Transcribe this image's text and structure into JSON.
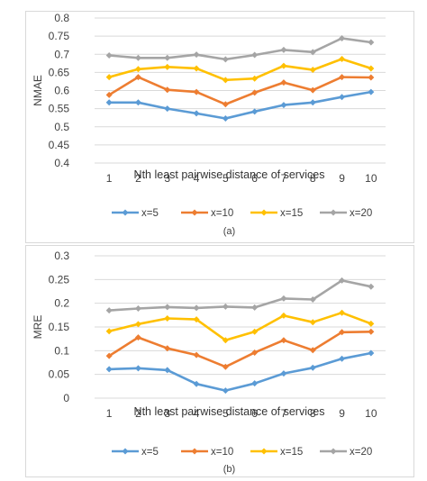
{
  "chart_data": [
    {
      "type": "line",
      "panel_label": "(a)",
      "ylabel": "NMAE",
      "xlabel": "Nth least pairwise distance of services",
      "x": [
        1,
        2,
        3,
        4,
        5,
        6,
        7,
        8,
        9,
        10
      ],
      "ylim": [
        0.4,
        0.8
      ],
      "yticks": [
        "0.4",
        "0.45",
        "0.5",
        "0.55",
        "0.6",
        "0.65",
        "0.7",
        "0.75",
        "0.8"
      ],
      "grid": true,
      "legend_position": "bottom",
      "series": [
        {
          "name": "x=5",
          "color": "#5b9bd5",
          "values": [
            0.567,
            0.567,
            0.55,
            0.537,
            0.523,
            0.542,
            0.56,
            0.567,
            0.582,
            0.596
          ]
        },
        {
          "name": "x=10",
          "color": "#ed7d31",
          "values": [
            0.588,
            0.637,
            0.602,
            0.596,
            0.562,
            0.594,
            0.622,
            0.601,
            0.637,
            0.636
          ]
        },
        {
          "name": "x=15",
          "color": "#ffc000",
          "values": [
            0.637,
            0.659,
            0.665,
            0.661,
            0.629,
            0.633,
            0.668,
            0.657,
            0.687,
            0.661
          ]
        },
        {
          "name": "x=20",
          "color": "#a5a5a5",
          "values": [
            0.697,
            0.69,
            0.69,
            0.699,
            0.686,
            0.698,
            0.712,
            0.706,
            0.744,
            0.733
          ]
        }
      ]
    },
    {
      "type": "line",
      "panel_label": "(b)",
      "ylabel": "MRE",
      "xlabel": "Nth least pairwise distance of services",
      "x": [
        1,
        2,
        3,
        4,
        5,
        6,
        7,
        8,
        9,
        10
      ],
      "ylim": [
        0,
        0.3
      ],
      "yticks": [
        "0",
        "0.05",
        "0.1",
        "0.15",
        "0.2",
        "0.25",
        "0.3"
      ],
      "grid": true,
      "legend_position": "bottom",
      "series": [
        {
          "name": "x=5",
          "color": "#5b9bd5",
          "values": [
            0.061,
            0.063,
            0.059,
            0.03,
            0.016,
            0.031,
            0.052,
            0.064,
            0.083,
            0.095
          ]
        },
        {
          "name": "x=10",
          "color": "#ed7d31",
          "values": [
            0.089,
            0.128,
            0.105,
            0.091,
            0.066,
            0.096,
            0.122,
            0.101,
            0.139,
            0.14
          ]
        },
        {
          "name": "x=15",
          "color": "#ffc000",
          "values": [
            0.141,
            0.156,
            0.168,
            0.166,
            0.122,
            0.14,
            0.174,
            0.16,
            0.18,
            0.157
          ]
        },
        {
          "name": "x=20",
          "color": "#a5a5a5",
          "values": [
            0.185,
            0.189,
            0.192,
            0.19,
            0.193,
            0.191,
            0.21,
            0.208,
            0.248,
            0.235
          ]
        }
      ]
    }
  ]
}
